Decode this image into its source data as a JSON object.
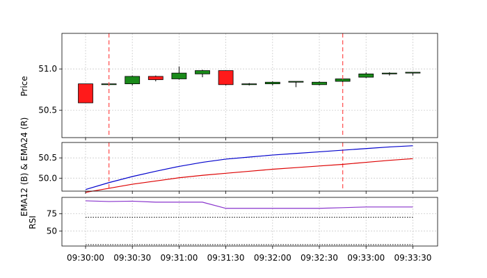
{
  "chart_data": [
    {
      "type": "candlestick",
      "ylabel": "Price",
      "yticks": [
        50.5,
        51.0
      ],
      "ylim": [
        50.17,
        51.43
      ],
      "grid": true,
      "candles": [
        {
          "t": "09:30:00",
          "open": 50.82,
          "high": 50.82,
          "low": 50.59,
          "close": 50.59,
          "color": "red"
        },
        {
          "t": "09:30:15",
          "open": 50.81,
          "high": 50.82,
          "low": 50.81,
          "close": 50.82,
          "color": "green"
        },
        {
          "t": "09:30:30",
          "open": 50.82,
          "high": 50.92,
          "low": 50.8,
          "close": 50.91,
          "color": "green"
        },
        {
          "t": "09:30:45",
          "open": 50.91,
          "high": 50.92,
          "low": 50.85,
          "close": 50.87,
          "color": "red"
        },
        {
          "t": "09:31:00",
          "open": 50.88,
          "high": 51.03,
          "low": 50.87,
          "close": 50.95,
          "color": "green"
        },
        {
          "t": "09:31:15",
          "open": 50.94,
          "high": 50.99,
          "low": 50.9,
          "close": 50.98,
          "color": "green"
        },
        {
          "t": "09:31:30",
          "open": 50.98,
          "high": 50.98,
          "low": 50.8,
          "close": 50.81,
          "color": "red"
        },
        {
          "t": "09:31:45",
          "open": 50.81,
          "high": 50.83,
          "low": 50.8,
          "close": 50.82,
          "color": "green"
        },
        {
          "t": "09:32:00",
          "open": 50.82,
          "high": 50.85,
          "low": 50.8,
          "close": 50.84,
          "color": "green"
        },
        {
          "t": "09:32:15",
          "open": 50.84,
          "high": 50.85,
          "low": 50.78,
          "close": 50.85,
          "color": "green"
        },
        {
          "t": "09:32:30",
          "open": 50.81,
          "high": 50.85,
          "low": 50.8,
          "close": 50.84,
          "color": "green"
        },
        {
          "t": "09:32:45",
          "open": 50.85,
          "high": 50.89,
          "low": 50.84,
          "close": 50.88,
          "color": "green"
        },
        {
          "t": "09:33:00",
          "open": 50.9,
          "high": 50.96,
          "low": 50.89,
          "close": 50.94,
          "color": "green"
        },
        {
          "t": "09:33:15",
          "open": 50.94,
          "high": 50.96,
          "low": 50.92,
          "close": 50.95,
          "color": "green"
        },
        {
          "t": "09:33:30",
          "open": 50.95,
          "high": 50.96,
          "low": 50.92,
          "close": 50.96,
          "color": "green"
        }
      ],
      "vlines": [
        "09:30:15",
        "09:32:45"
      ]
    },
    {
      "type": "line",
      "ylabel": "EMA12 (B) & EMA24 (R)",
      "yticks": [
        50.0,
        50.5
      ],
      "ylim": [
        49.68,
        50.88
      ],
      "grid": true,
      "series": [
        {
          "color": "#0000cc",
          "values": [
            49.72,
            49.89,
            50.04,
            50.17,
            50.29,
            50.39,
            50.47,
            50.52,
            50.57,
            50.61,
            50.65,
            50.69,
            50.73,
            50.77,
            50.8
          ]
        },
        {
          "color": "#dd0000",
          "values": [
            49.65,
            49.75,
            49.85,
            49.93,
            50.01,
            50.07,
            50.12,
            50.17,
            50.22,
            50.26,
            50.3,
            50.34,
            50.39,
            50.44,
            50.48
          ]
        }
      ]
    },
    {
      "type": "line",
      "ylabel": "RSI",
      "yticks": [
        50,
        75
      ],
      "ylim": [
        28,
        99
      ],
      "grid": true,
      "series": [
        {
          "color": "#8833cc",
          "values": [
            94,
            93,
            93.5,
            92,
            92,
            92,
            83,
            83,
            83,
            83,
            83,
            84,
            85,
            85,
            85
          ]
        }
      ],
      "hlines": [
        70,
        30
      ]
    }
  ],
  "x_ticks": [
    "09:30:00",
    "09:30:30",
    "09:31:00",
    "09:31:30",
    "09:32:00",
    "09:32:30",
    "09:33:00",
    "09:33:30"
  ]
}
